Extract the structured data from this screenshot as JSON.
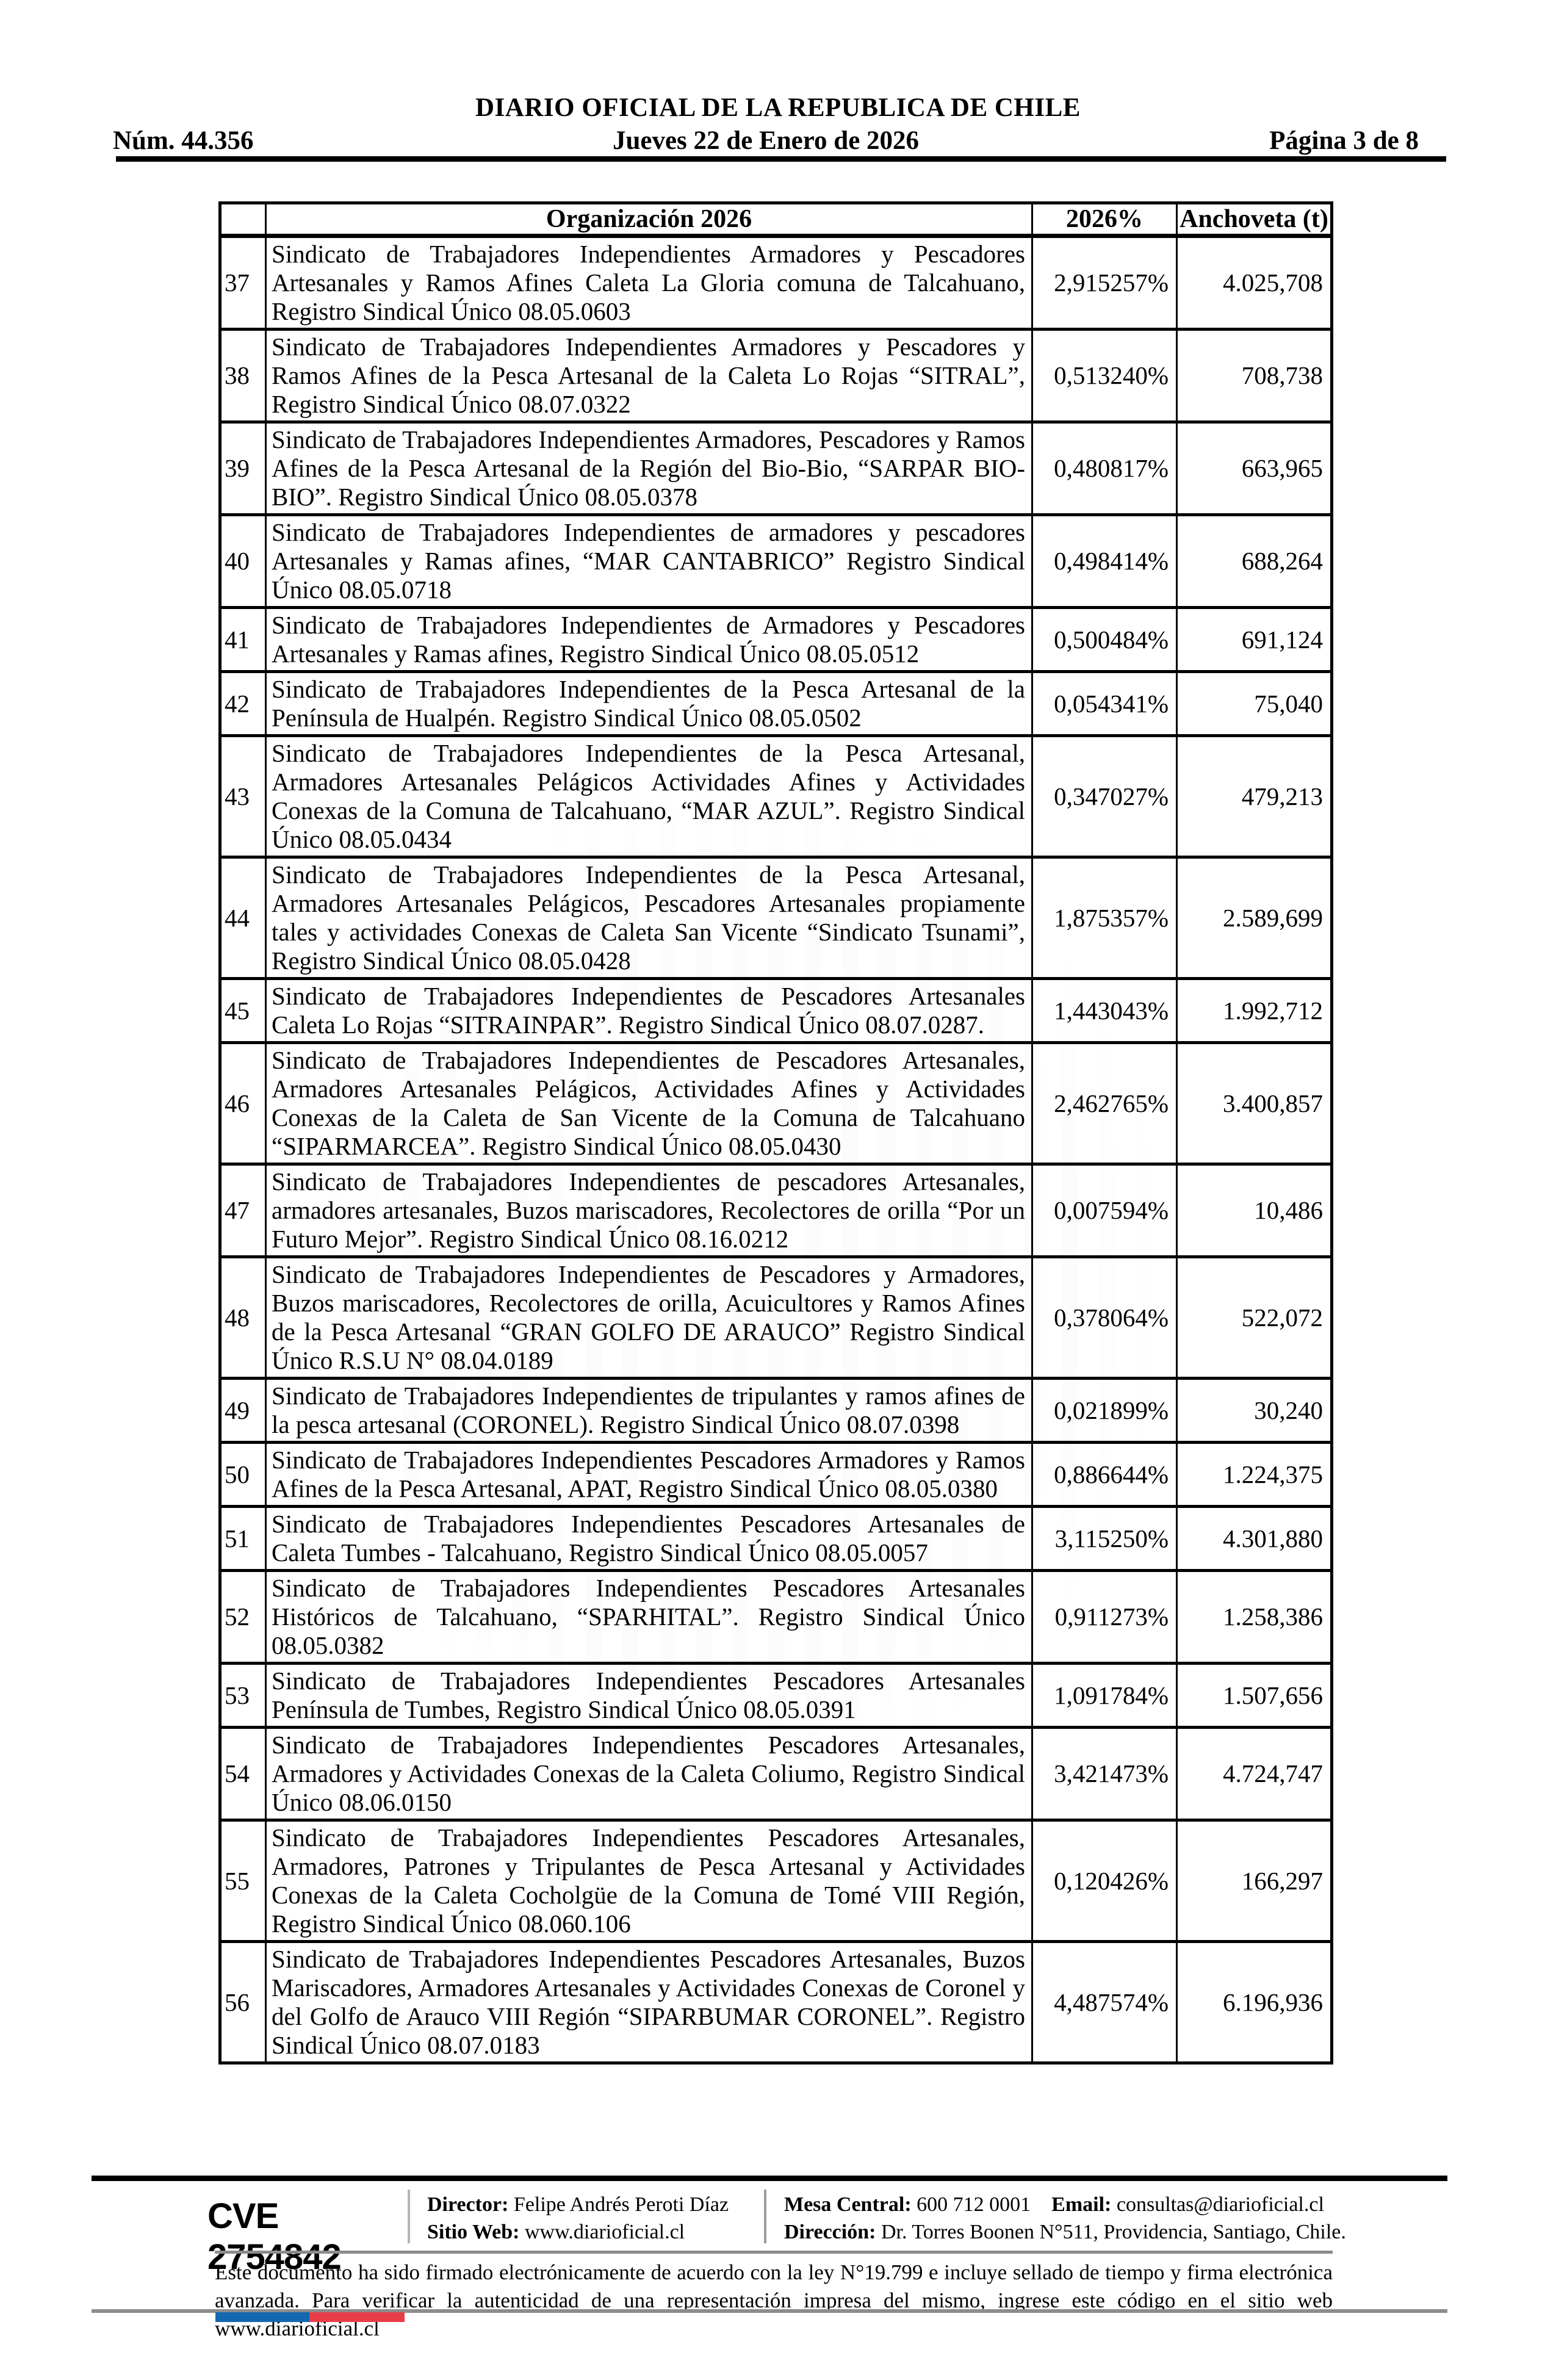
{
  "masthead": {
    "num": "Núm. 44.356",
    "title": "DIARIO OFICIAL DE LA REPUBLICA DE CHILE",
    "date": "Jueves 22 de Enero de 2026",
    "page_indicator": "Página 3 de 8"
  },
  "table": {
    "columns": {
      "row_number": "",
      "org": "Organización 2026",
      "pct": "2026%",
      "anchoveta": "Anchoveta (t)"
    },
    "rows": [
      {
        "n": "37",
        "org": "Sindicato de Trabajadores Independientes Armadores y Pescadores Artesanales y Ramos Afines Caleta La Gloria comuna de Talcahuano, Registro Sindical Único 08.05.0603",
        "pct": "2,915257%",
        "anchoveta": "4.025,708"
      },
      {
        "n": "38",
        "org": "Sindicato de Trabajadores Independientes Armadores y Pescadores y Ramos Afines de la Pesca Artesanal de la Caleta Lo Rojas “SITRAL”, Registro Sindical Único 08.07.0322",
        "pct": "0,513240%",
        "anchoveta": "708,738"
      },
      {
        "n": "39",
        "org": "Sindicato de Trabajadores Independientes Armadores, Pescadores y Ramos Afines de la Pesca Artesanal de la Región del Bio-Bio, “SARPAR BIO-BIO”. Registro Sindical Único 08.05.0378",
        "pct": "0,480817%",
        "anchoveta": "663,965"
      },
      {
        "n": "40",
        "org": "Sindicato de Trabajadores Independientes de armadores y pescadores Artesanales y Ramas afines, “MAR CANTABRICO” Registro Sindical Único 08.05.0718",
        "pct": "0,498414%",
        "anchoveta": "688,264"
      },
      {
        "n": "41",
        "org": "Sindicato de Trabajadores Independientes de Armadores y Pescadores Artesanales y Ramas afines, Registro Sindical Único 08.05.0512",
        "pct": "0,500484%",
        "anchoveta": "691,124"
      },
      {
        "n": "42",
        "org": "Sindicato de Trabajadores Independientes de la Pesca Artesanal de la Península de Hualpén. Registro Sindical Único 08.05.0502",
        "pct": "0,054341%",
        "anchoveta": "75,040"
      },
      {
        "n": "43",
        "org": "Sindicato de Trabajadores Independientes de la Pesca Artesanal, Armadores Artesanales Pelágicos Actividades Afines y Actividades Conexas de la Comuna de Talcahuano, “MAR AZUL”. Registro Sindical Único 08.05.0434",
        "pct": "0,347027%",
        "anchoveta": "479,213"
      },
      {
        "n": "44",
        "org": "Sindicato de Trabajadores Independientes de la Pesca Artesanal, Armadores Artesanales Pelágicos, Pescadores Artesanales propiamente tales y actividades Conexas de Caleta San Vicente “Sindicato Tsunami”, Registro Sindical Único 08.05.0428",
        "pct": "1,875357%",
        "anchoveta": "2.589,699"
      },
      {
        "n": "45",
        "org": "Sindicato de Trabajadores Independientes de Pescadores Artesanales Caleta Lo Rojas “SITRAINPAR”. Registro Sindical Único 08.07.0287.",
        "pct": "1,443043%",
        "anchoveta": "1.992,712"
      },
      {
        "n": "46",
        "org": "Sindicato de Trabajadores Independientes de Pescadores Artesanales, Armadores Artesanales Pelágicos, Actividades Afines y Actividades Conexas de la Caleta de San Vicente de la Comuna de Talcahuano “SIPARMARCEA”. Registro Sindical Único 08.05.0430",
        "pct": "2,462765%",
        "anchoveta": "3.400,857"
      },
      {
        "n": "47",
        "org": "Sindicato de Trabajadores Independientes de pescadores Artesanales, armadores artesanales, Buzos mariscadores, Recolectores de orilla “Por un Futuro Mejor”. Registro Sindical Único 08.16.0212",
        "pct": "0,007594%",
        "anchoveta": "10,486"
      },
      {
        "n": "48",
        "org": "Sindicato de Trabajadores Independientes de Pescadores y Armadores, Buzos mariscadores, Recolectores de orilla, Acuicultores y Ramos Afines de la Pesca Artesanal “GRAN GOLFO DE ARAUCO” Registro Sindical Único R.S.U N° 08.04.0189",
        "pct": "0,378064%",
        "anchoveta": "522,072"
      },
      {
        "n": "49",
        "org": "Sindicato de Trabajadores Independientes de tripulantes y ramos afines de la pesca artesanal (CORONEL). Registro Sindical Único 08.07.0398",
        "pct": "0,021899%",
        "anchoveta": "30,240"
      },
      {
        "n": "50",
        "org": "Sindicato de Trabajadores Independientes Pescadores Armadores y Ramos Afines de la Pesca Artesanal, APAT, Registro Sindical Único 08.05.0380",
        "pct": "0,886644%",
        "anchoveta": "1.224,375"
      },
      {
        "n": "51",
        "org": "Sindicato de Trabajadores Independientes Pescadores Artesanales de Caleta Tumbes - Talcahuano, Registro Sindical Único 08.05.0057",
        "pct": "3,115250%",
        "anchoveta": "4.301,880"
      },
      {
        "n": "52",
        "org": "Sindicato de Trabajadores Independientes Pescadores Artesanales Históricos de Talcahuano, “SPARHITAL”. Registro Sindical Único 08.05.0382",
        "pct": "0,911273%",
        "anchoveta": "1.258,386"
      },
      {
        "n": "53",
        "org": "Sindicato de Trabajadores Independientes Pescadores Artesanales Península de Tumbes, Registro Sindical Único 08.05.0391",
        "pct": "1,091784%",
        "anchoveta": "1.507,656"
      },
      {
        "n": "54",
        "org": "Sindicato de Trabajadores Independientes Pescadores Artesanales, Armadores y Actividades Conexas de la Caleta Coliumo, Registro Sindical Único 08.06.0150",
        "pct": "3,421473%",
        "anchoveta": "4.724,747"
      },
      {
        "n": "55",
        "org": "Sindicato de Trabajadores Independientes Pescadores Artesanales, Armadores, Patrones y Tripulantes de Pesca Artesanal y Actividades Conexas de la Caleta Cocholgüe de la Comuna de Tomé VIII Región, Registro Sindical Único 08.060.106",
        "pct": "0,120426%",
        "anchoveta": "166,297"
      },
      {
        "n": "56",
        "org": "Sindicato de Trabajadores Independientes Pescadores Artesanales, Buzos Mariscadores, Armadores Artesanales y Actividades Conexas de Coronel y del Golfo de Arauco VIII Región “SIPARBUMAR CORONEL”. Registro Sindical Único 08.07.0183",
        "pct": "4,487574%",
        "anchoveta": "6.196,936"
      }
    ]
  },
  "footer": {
    "cve": "CVE 2754842",
    "director_label": "Director:",
    "director_value": "Felipe Andrés Peroti Díaz",
    "sitio_label": "Sitio Web:",
    "sitio_value": "www.diarioficial.cl",
    "mesa_label": "Mesa Central:",
    "mesa_value": "600 712 0001",
    "email_label": "Email:",
    "email_value": "consultas@diarioficial.cl",
    "direccion_label": "Dirección:",
    "direccion_value": "Dr. Torres Boonen N°511, Providencia, Santiago, Chile.",
    "legal_text": "Este documento ha sido firmado electrónicamente de acuerdo con la ley N°19.799 e incluye sellado de tiempo y firma electrónica avanzada. Para verificar la autenticidad de una representación impresa del mismo, ingrese este código en el sitio web www.diarioficial.cl"
  },
  "colors": {
    "flag_blue": "#1368b1",
    "flag_red": "#e83e48",
    "rule_gray": "#8c8c8c"
  }
}
